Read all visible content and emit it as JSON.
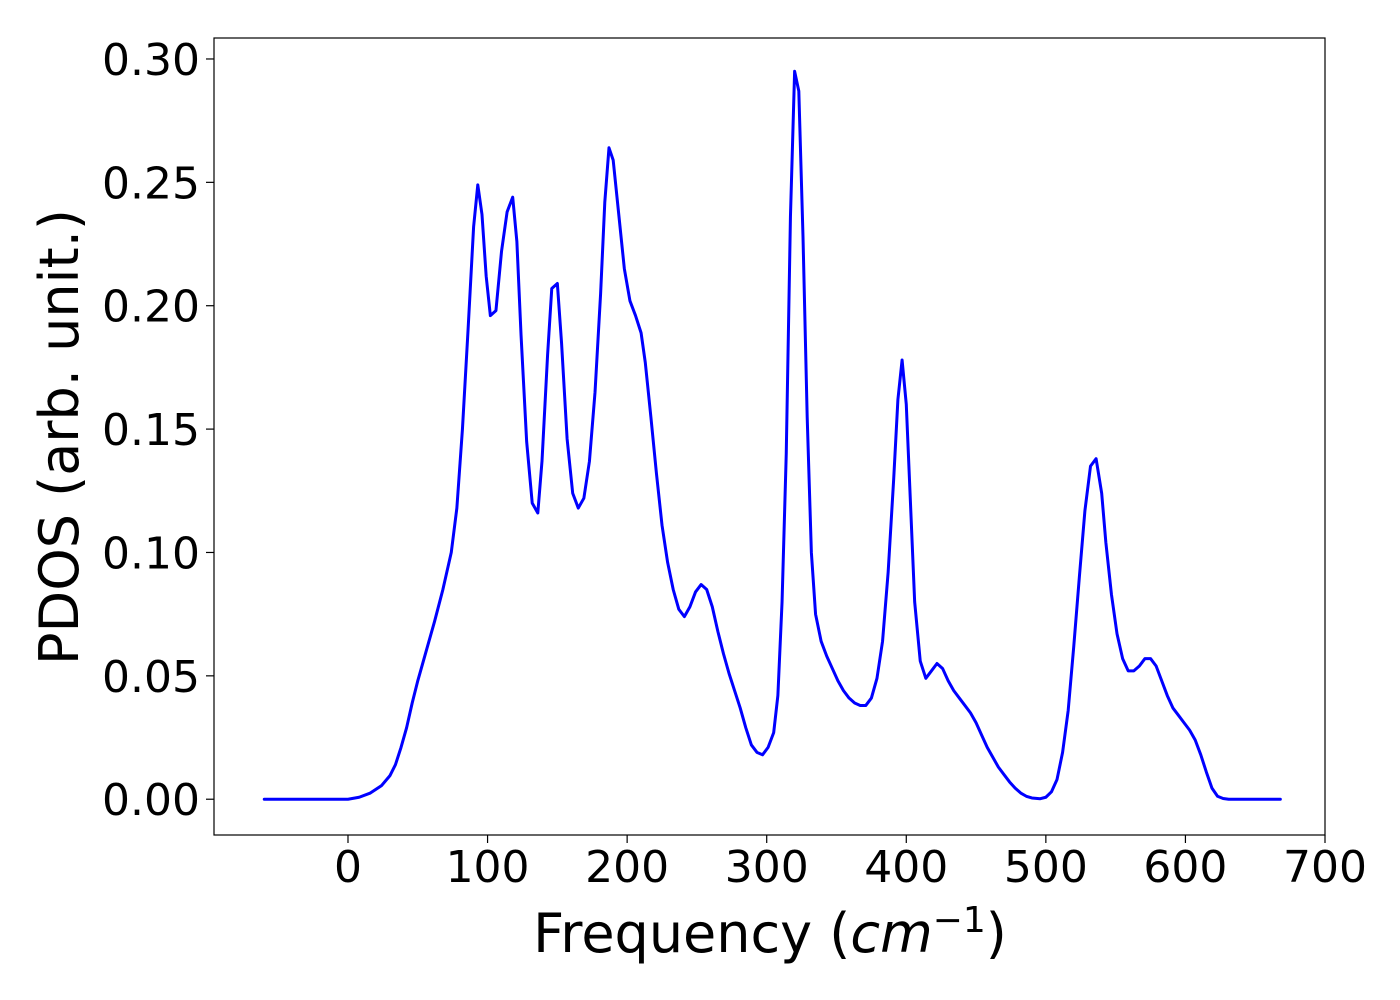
{
  "chart_data": {
    "type": "line",
    "xlabel": "Frequency",
    "xlabel_unit_base": "cm",
    "xlabel_unit_exponent": "−1",
    "ylabel": "PDOS (arb. unit.)",
    "xlim": [
      -96,
      700
    ],
    "ylim": [
      -0.0145,
      0.3085
    ],
    "xticks": [
      0,
      100,
      200,
      300,
      400,
      500,
      600,
      700
    ],
    "yticks": [
      0.0,
      0.05,
      0.1,
      0.15,
      0.2,
      0.25,
      0.3
    ],
    "xtick_labels": [
      "0",
      "100",
      "200",
      "300",
      "400",
      "500",
      "600",
      "700"
    ],
    "ytick_labels": [
      "0.00",
      "0.05",
      "0.10",
      "0.15",
      "0.20",
      "0.25",
      "0.30"
    ],
    "grid": false,
    "legend": "none",
    "series": [
      {
        "color": "#0000ff",
        "points": [
          [
            -60,
            0.0
          ],
          [
            -40,
            0.0
          ],
          [
            -20,
            0.0
          ],
          [
            0,
            0.0
          ],
          [
            8,
            0.0008
          ],
          [
            16,
            0.0025
          ],
          [
            24,
            0.0055
          ],
          [
            30,
            0.0095
          ],
          [
            34,
            0.014
          ],
          [
            38,
            0.021
          ],
          [
            42,
            0.029
          ],
          [
            46,
            0.039
          ],
          [
            50,
            0.048
          ],
          [
            56,
            0.06
          ],
          [
            62,
            0.072
          ],
          [
            68,
            0.085
          ],
          [
            74,
            0.1
          ],
          [
            78,
            0.118
          ],
          [
            82,
            0.15
          ],
          [
            86,
            0.19
          ],
          [
            90,
            0.232
          ],
          [
            93,
            0.249
          ],
          [
            96,
            0.237
          ],
          [
            99,
            0.212
          ],
          [
            102,
            0.196
          ],
          [
            106,
            0.198
          ],
          [
            110,
            0.222
          ],
          [
            114,
            0.238
          ],
          [
            118,
            0.244
          ],
          [
            121,
            0.226
          ],
          [
            124,
            0.188
          ],
          [
            128,
            0.145
          ],
          [
            132,
            0.12
          ],
          [
            136,
            0.116
          ],
          [
            139,
            0.137
          ],
          [
            143,
            0.18
          ],
          [
            146,
            0.207
          ],
          [
            150,
            0.209
          ],
          [
            153,
            0.185
          ],
          [
            157,
            0.146
          ],
          [
            161,
            0.124
          ],
          [
            165,
            0.118
          ],
          [
            169,
            0.122
          ],
          [
            173,
            0.137
          ],
          [
            177,
            0.165
          ],
          [
            181,
            0.205
          ],
          [
            184,
            0.242
          ],
          [
            187,
            0.264
          ],
          [
            190,
            0.259
          ],
          [
            194,
            0.237
          ],
          [
            198,
            0.215
          ],
          [
            202,
            0.202
          ],
          [
            206,
            0.196
          ],
          [
            210,
            0.189
          ],
          [
            213,
            0.177
          ],
          [
            217,
            0.155
          ],
          [
            221,
            0.132
          ],
          [
            225,
            0.111
          ],
          [
            229,
            0.096
          ],
          [
            233,
            0.085
          ],
          [
            237,
            0.077
          ],
          [
            241,
            0.074
          ],
          [
            245,
            0.078
          ],
          [
            249,
            0.084
          ],
          [
            253,
            0.087
          ],
          [
            257,
            0.085
          ],
          [
            261,
            0.078
          ],
          [
            265,
            0.068
          ],
          [
            269,
            0.059
          ],
          [
            273,
            0.051
          ],
          [
            277,
            0.044
          ],
          [
            281,
            0.037
          ],
          [
            285,
            0.029
          ],
          [
            289,
            0.022
          ],
          [
            293,
            0.019
          ],
          [
            297,
            0.018
          ],
          [
            301,
            0.021
          ],
          [
            305,
            0.027
          ],
          [
            308,
            0.042
          ],
          [
            311,
            0.08
          ],
          [
            314,
            0.14
          ],
          [
            317,
            0.236
          ],
          [
            320,
            0.295
          ],
          [
            323,
            0.287
          ],
          [
            326,
            0.228
          ],
          [
            329,
            0.155
          ],
          [
            332,
            0.1
          ],
          [
            335,
            0.075
          ],
          [
            339,
            0.064
          ],
          [
            343,
            0.058
          ],
          [
            347,
            0.053
          ],
          [
            351,
            0.048
          ],
          [
            355,
            0.044
          ],
          [
            359,
            0.041
          ],
          [
            363,
            0.039
          ],
          [
            367,
            0.038
          ],
          [
            371,
            0.038
          ],
          [
            375,
            0.041
          ],
          [
            379,
            0.049
          ],
          [
            383,
            0.064
          ],
          [
            387,
            0.092
          ],
          [
            391,
            0.13
          ],
          [
            394,
            0.162
          ],
          [
            397,
            0.178
          ],
          [
            400,
            0.16
          ],
          [
            403,
            0.12
          ],
          [
            406,
            0.08
          ],
          [
            410,
            0.056
          ],
          [
            414,
            0.049
          ],
          [
            418,
            0.052
          ],
          [
            422,
            0.055
          ],
          [
            426,
            0.053
          ],
          [
            430,
            0.048
          ],
          [
            434,
            0.044
          ],
          [
            438,
            0.041
          ],
          [
            442,
            0.038
          ],
          [
            446,
            0.035
          ],
          [
            450,
            0.031
          ],
          [
            454,
            0.026
          ],
          [
            458,
            0.021
          ],
          [
            462,
            0.017
          ],
          [
            466,
            0.013
          ],
          [
            470,
            0.01
          ],
          [
            474,
            0.007
          ],
          [
            478,
            0.0045
          ],
          [
            482,
            0.0025
          ],
          [
            486,
            0.0012
          ],
          [
            490,
            0.0005
          ],
          [
            496,
            0.0002
          ],
          [
            500,
            0.0008
          ],
          [
            504,
            0.003
          ],
          [
            508,
            0.008
          ],
          [
            512,
            0.019
          ],
          [
            516,
            0.036
          ],
          [
            520,
            0.062
          ],
          [
            524,
            0.09
          ],
          [
            528,
            0.117
          ],
          [
            532,
            0.135
          ],
          [
            536,
            0.138
          ],
          [
            540,
            0.124
          ],
          [
            543,
            0.104
          ],
          [
            547,
            0.083
          ],
          [
            551,
            0.067
          ],
          [
            555,
            0.057
          ],
          [
            559,
            0.052
          ],
          [
            563,
            0.052
          ],
          [
            567,
            0.054
          ],
          [
            571,
            0.057
          ],
          [
            575,
            0.057
          ],
          [
            579,
            0.054
          ],
          [
            583,
            0.048
          ],
          [
            587,
            0.042
          ],
          [
            591,
            0.037
          ],
          [
            595,
            0.034
          ],
          [
            599,
            0.031
          ],
          [
            603,
            0.028
          ],
          [
            607,
            0.024
          ],
          [
            611,
            0.018
          ],
          [
            615,
            0.011
          ],
          [
            619,
            0.0045
          ],
          [
            623,
            0.0012
          ],
          [
            627,
            0.0003
          ],
          [
            631,
            0.0
          ],
          [
            650,
            0.0
          ],
          [
            668,
            0.0
          ]
        ]
      }
    ]
  }
}
